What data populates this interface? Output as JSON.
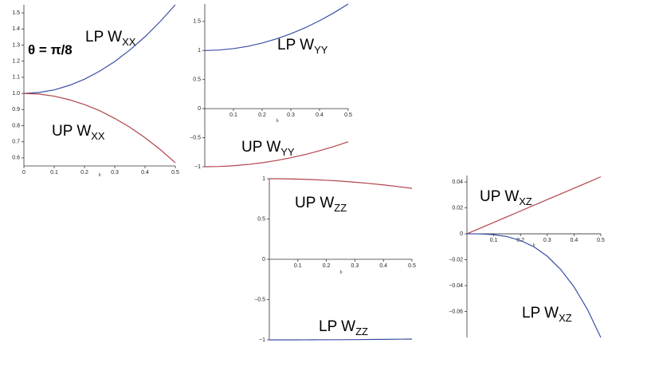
{
  "chart_data": [
    {
      "type": "line",
      "label": "θ = π/8",
      "xlabel": "b",
      "x": [
        0,
        0.05,
        0.1,
        0.15,
        0.2,
        0.25,
        0.3,
        0.35,
        0.4,
        0.45,
        0.5
      ],
      "series": [
        {
          "name": "LP W",
          "name_sub": "XX",
          "color": "#3a4ea6",
          "values": [
            1,
            1.006,
            1.022,
            1.05,
            1.088,
            1.138,
            1.198,
            1.27,
            1.352,
            1.446,
            1.55
          ]
        },
        {
          "name": "UP W",
          "name_sub": "XX",
          "color": "#b3434c",
          "values": [
            1,
            0.996,
            0.983,
            0.961,
            0.931,
            0.893,
            0.845,
            0.79,
            0.725,
            0.652,
            0.57
          ]
        }
      ],
      "xlim": [
        0,
        0.5
      ],
      "ylim": [
        0.55,
        1.55
      ],
      "xticks": [
        0,
        0.1,
        0.2,
        0.3,
        0.4,
        0.5
      ],
      "yticks": [
        0.6,
        0.7,
        0.8,
        0.9,
        {
          "value": 1,
          "label": "1.0"
        },
        1.1,
        1.2,
        1.3,
        1.4,
        1.5
      ]
    },
    {
      "type": "line",
      "xlabel": "b",
      "x": [
        0,
        0.05,
        0.1,
        0.15,
        0.2,
        0.25,
        0.3,
        0.35,
        0.4,
        0.45,
        0.5
      ],
      "series": [
        {
          "name": "LP W",
          "name_sub": "YY",
          "color": "#3a4ea6",
          "values": [
            1,
            1.008,
            1.032,
            1.072,
            1.128,
            1.2,
            1.288,
            1.392,
            1.512,
            1.648,
            1.8
          ]
        },
        {
          "name": "UP W",
          "name_sub": "YY",
          "color": "#b3434c",
          "values": [
            -1,
            -0.996,
            -0.983,
            -0.961,
            -0.931,
            -0.893,
            -0.845,
            -0.79,
            -0.725,
            -0.652,
            -0.57
          ]
        }
      ],
      "xlim": [
        0,
        0.5
      ],
      "ylim": [
        -1,
        1.8
      ],
      "xticks": [
        0.1,
        0.2,
        0.3,
        0.4,
        0.5
      ],
      "yticks": [
        {
          "value": -1,
          "label": "−1"
        },
        {
          "value": -0.5,
          "label": "−0.5"
        },
        0,
        0.5,
        1,
        1.5
      ]
    },
    {
      "type": "line",
      "xlabel": "b",
      "x": [
        0,
        0.05,
        0.1,
        0.15,
        0.2,
        0.25,
        0.3,
        0.35,
        0.4,
        0.45,
        0.5
      ],
      "series": [
        {
          "name": "UP W",
          "name_sub": "ZZ",
          "color": "#b3434c",
          "values": [
            1,
            0.999,
            0.995,
            0.989,
            0.981,
            0.97,
            0.957,
            0.941,
            0.923,
            0.903,
            0.88
          ]
        },
        {
          "name": "LP W",
          "name_sub": "ZZ",
          "color": "#3a4ea6",
          "values": [
            -1,
            -1,
            -1,
            -0.999,
            -0.998,
            -0.998,
            -0.997,
            -0.995,
            -0.994,
            -0.992,
            -0.99
          ]
        }
      ],
      "xlim": [
        0,
        0.5
      ],
      "ylim": [
        -1,
        1
      ],
      "xticks": [
        0.1,
        0.2,
        0.3,
        0.4,
        0.5
      ],
      "yticks": [
        {
          "value": -1,
          "label": "−1"
        },
        {
          "value": -0.5,
          "label": "−0.5"
        },
        0,
        0.5,
        1
      ]
    },
    {
      "type": "line",
      "xlabel": "b",
      "x": [
        0,
        0.05,
        0.1,
        0.15,
        0.2,
        0.25,
        0.3,
        0.35,
        0.4,
        0.45,
        0.5
      ],
      "series": [
        {
          "name": "UP W",
          "name_sub": "XZ",
          "color": "#b3434c",
          "values": [
            0,
            0.0044,
            0.0088,
            0.0132,
            0.0176,
            0.022,
            0.0264,
            0.0308,
            0.0352,
            0.0396,
            0.044
          ]
        },
        {
          "name": "LP W",
          "name_sub": "XZ",
          "color": "#3a4ea6",
          "values": [
            0,
            -8e-05,
            -0.00064,
            -0.00216,
            -0.00512,
            -0.01,
            -0.01728,
            -0.02744,
            -0.04096,
            -0.05832,
            -0.08
          ]
        }
      ],
      "xlim": [
        0,
        0.5
      ],
      "ylim": [
        -0.08,
        0.045
      ],
      "xticks": [
        0.1,
        0.2,
        0.3,
        0.4,
        0.5
      ],
      "yticks": [
        {
          "value": -0.06,
          "label": "−0.06"
        },
        {
          "value": -0.04,
          "label": "−0.04"
        },
        {
          "value": -0.02,
          "label": "−0.02"
        },
        0,
        0.02,
        0.04
      ]
    }
  ]
}
